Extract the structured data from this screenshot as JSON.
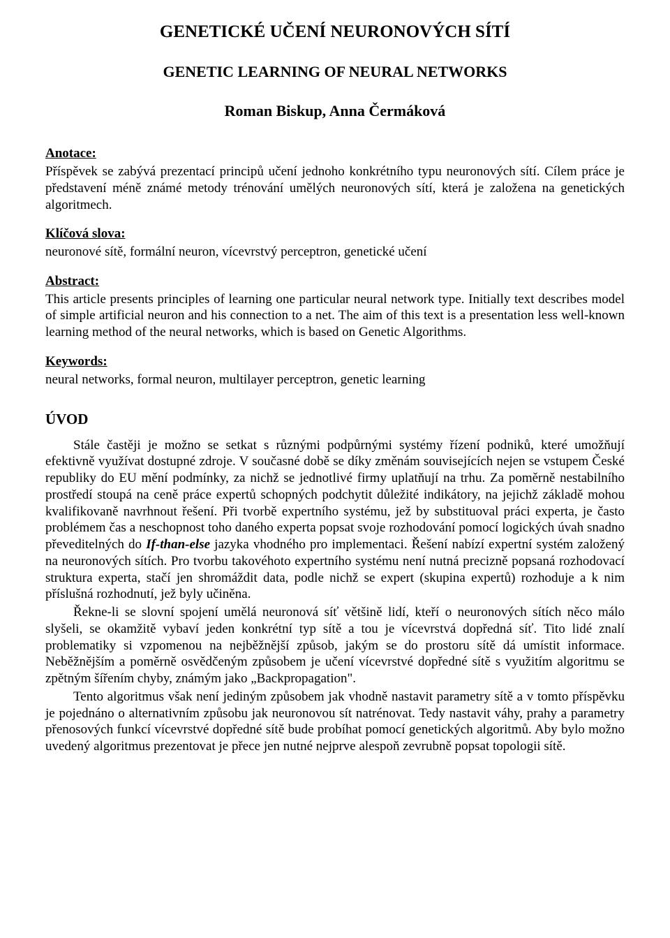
{
  "title_main": "GENETICKÉ UČENÍ NEURONOVÝCH SÍTÍ",
  "title_sub": "GENETIC LEARNING OF NEURAL NETWORKS",
  "authors": "Roman Biskup, Anna Čermáková",
  "anotace": {
    "heading": "Anotace:",
    "body": "Příspěvek se zabývá prezentací principů učení jednoho konkrétního typu neuronových sítí. Cílem práce je představení méně známé metody trénování umělých neuronových sítí, která je založena na genetických algoritmech."
  },
  "klicova": {
    "heading": "Klíčová slova:",
    "body": "neuronové sítě, formální neuron, vícevrstvý perceptron, genetické učení"
  },
  "abstract": {
    "heading": "Abstract:",
    "body": "This article presents principles of learning one particular neural network type. Initially text describes model of simple artificial neuron and his connection to a net. The aim of this text is a presentation less well-known learning method of the neural networks, which is based on Genetic Algorithms."
  },
  "keywords": {
    "heading": "Keywords:",
    "body": "neural networks, formal neuron, multilayer perceptron, genetic learning"
  },
  "uvod": {
    "heading": "ÚVOD",
    "p1_a": "Stále častěji je možno se setkat s různými podpůrnými systémy řízení podniků, které umožňují efektivně využívat dostupné zdroje. V současné době se díky změnám souvisejících nejen se vstupem České republiky do EU mění podmínky, za nichž se jednotlivé firmy uplatňují na trhu. Za poměrně nestabilního prostředí stoupá na ceně práce expertů schopných podchytit důležité indikátory, na jejichž základě mohou kvalifikovaně navrhnout řešení. Při tvorbě expertního systému, jež by substituoval práci experta, je často problémem čas a neschopnost toho daného experta popsat svoje rozhodování pomocí logických úvah snadno převeditelných do ",
    "p1_em": "If-than-else",
    "p1_b": " jazyka vhodného pro implementaci. Řešení nabízí expertní systém založený na neuronových sítích. Pro tvorbu takovéhoto expertního systému není nutná precizně popsaná rozhodovací struktura experta, stačí jen shromáždit data, podle nichž se expert (skupina expertů) rozhoduje a k nim příslušná rozhodnutí, jež byly učiněna.",
    "p2": "Řekne-li se slovní spojení umělá neuronová síť většině lidí, kteří o neuronových sítích něco málo slyšeli, se okamžitě vybaví jeden konkrétní typ sítě a tou je vícevrstvá dopředná síť. Tito lidé znalí problematiky si vzpomenou na nejběžnější způsob, jakým se do prostoru sítě dá umístit informace. Neběžnějším a poměrně osvědčeným způsobem je učení vícevrstvé dopředné sítě s využitím algoritmu se zpětným šířením chyby, známým jako „Backpropagation\".",
    "p3": "Tento algoritmus však není jediným způsobem jak vhodně nastavit parametry sítě a v tomto příspěvku je pojednáno o alternativním způsobu jak neuronovou sít natrénovat. Tedy nastavit váhy, prahy a parametry přenosových funkcí vícevrstvé dopředné sítě bude probíhat pomocí genetických algoritmů. Aby bylo možno uvedený algoritmus prezentovat je přece jen nutné nejprve alespoň zevrubně popsat topologii sítě."
  }
}
